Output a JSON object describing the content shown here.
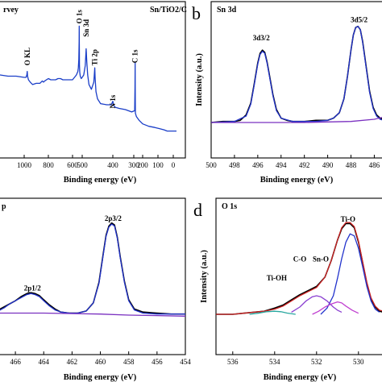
{
  "chart_data": [
    {
      "type": "line",
      "panel_label": "",
      "title": "Sn/TiO2/C",
      "title_partial": "rvey",
      "xlabel": "Binding energy (eV)",
      "ylabel": "",
      "x_ticks": [
        "1000",
        "800",
        "600",
        "500",
        "400",
        "300",
        "200",
        "100",
        "0"
      ],
      "x_tick_values": [
        1000,
        800,
        600,
        500,
        400,
        300,
        200,
        100,
        0
      ],
      "x_axis": "0.5 px per eV, 0-100 eV and 500-1000 eV; 400-200 eV compressed",
      "xlim": [
        1090,
        -20
      ],
      "ylim": [
        0,
        100
      ],
      "annotations": [
        {
          "text": "O KL",
          "x": 975,
          "y": 60
        },
        {
          "text": "O 1s",
          "x": 531,
          "y": 95
        },
        {
          "text": "Sn 3d",
          "x": 487,
          "y": 84
        },
        {
          "text": "Ti 2p",
          "x": 459,
          "y": 60
        },
        {
          "text": "N 1s",
          "x": 400,
          "y": 24
        },
        {
          "text": "C 1s",
          "x": 285,
          "y": 62
        }
      ],
      "series": [
        {
          "color": "#1a3ec8",
          "x": [
            1090,
            1080,
            1060,
            1040,
            1020,
            1000,
            985,
            978,
            975,
            972,
            965,
            950,
            930,
            900,
            870,
            850,
            840,
            830,
            800,
            780,
            760,
            740,
            720,
            700,
            680,
            660,
            640,
            620,
            600,
            590,
            580,
            570,
            560,
            550,
            545,
            540,
            535,
            532,
            531,
            530,
            528,
            525,
            520,
            510,
            500,
            495,
            490,
            487,
            485,
            482,
            478,
            470,
            462,
            459,
            458,
            455,
            450,
            440,
            420,
            405,
            400,
            397,
            390,
            370,
            340,
            310,
            290,
            286,
            285,
            284,
            282,
            270,
            240,
            200,
            160,
            120,
            90,
            60,
            40,
            20,
            0,
            -10,
            -20
          ],
          "y": [
            54,
            52,
            52,
            51,
            51,
            50,
            50,
            52,
            55,
            51,
            48,
            46,
            44,
            45,
            45,
            47,
            46,
            47,
            49,
            48,
            48,
            48,
            49,
            49,
            48,
            48,
            48,
            48,
            48,
            49,
            50,
            51,
            52,
            54,
            55,
            58,
            65,
            80,
            93,
            82,
            60,
            54,
            51,
            49,
            50,
            52,
            60,
            74,
            63,
            52,
            44,
            40,
            46,
            58,
            50,
            38,
            32,
            28,
            27,
            27,
            30,
            27,
            25,
            24,
            23,
            21,
            22,
            42,
            62,
            42,
            20,
            17,
            14,
            11,
            9,
            8,
            7,
            6,
            5,
            5,
            5,
            5,
            5
          ]
        }
      ]
    },
    {
      "type": "line",
      "panel_label": "b",
      "title": "Sn 3d",
      "xlabel": "Binding energy (eV)",
      "ylabel": "Intensity (a.u.)",
      "x_ticks": [
        "500",
        "498",
        "496",
        "494",
        "492",
        "490",
        "488",
        "486"
      ],
      "xlim": [
        500,
        485.2
      ],
      "ylim": [
        0,
        100
      ],
      "annotations": [
        {
          "text": "3d3/2",
          "x": 495.7,
          "y": 76
        },
        {
          "text": "3d5/2",
          "x": 487.3,
          "y": 93
        }
      ],
      "series": [
        {
          "color": "#000000",
          "x": [
            500,
            499,
            498,
            497.5,
            497,
            496.6,
            496.3,
            496,
            495.8,
            495.6,
            495.4,
            495.2,
            495,
            494.7,
            494.4,
            494,
            493.5,
            493,
            492,
            491,
            490,
            489.5,
            489,
            488.6,
            488.3,
            488,
            487.8,
            487.6,
            487.4,
            487.2,
            487,
            486.7,
            486.4,
            486.1,
            485.8,
            485.5,
            485.2
          ],
          "y": [
            0,
            1,
            1,
            2,
            7,
            18,
            36,
            55,
            64,
            67,
            65,
            56,
            44,
            26,
            12,
            4,
            2,
            1,
            1,
            2,
            2,
            4,
            9,
            22,
            43,
            67,
            81,
            88,
            89,
            86,
            75,
            52,
            29,
            14,
            7,
            4,
            3
          ]
        },
        {
          "color": "#2233cc",
          "x": [
            500,
            498,
            497,
            496.6,
            496.3,
            496,
            495.8,
            495.6,
            495.4,
            495.2,
            495,
            494.7,
            494.4,
            494,
            493,
            491,
            490,
            489.5,
            489,
            488.6,
            488.3,
            488,
            487.8,
            487.6,
            487.4,
            487.2,
            487,
            486.7,
            486.4,
            486.1,
            485.8,
            485.5,
            485.2
          ],
          "y": [
            0,
            1,
            6,
            17,
            35,
            54,
            63,
            66,
            64,
            55,
            43,
            25,
            11,
            4,
            1,
            1,
            2,
            4,
            9,
            22,
            43,
            67,
            81,
            88,
            89,
            86,
            74,
            51,
            28,
            13,
            6,
            3,
            2
          ]
        },
        {
          "color": "#7a30c0",
          "x": [
            500,
            498,
            496,
            494,
            492,
            490,
            488,
            486,
            485.2
          ],
          "y": [
            0,
            0,
            0,
            0,
            0,
            0.5,
            1,
            3,
            5
          ]
        }
      ]
    },
    {
      "type": "line",
      "panel_label": "",
      "title": "Ti 2p",
      "title_partial": "p",
      "xlabel": "Binding energy (eV)",
      "ylabel": "",
      "x_ticks": [
        "466",
        "464",
        "462",
        "460",
        "458",
        "456",
        "454"
      ],
      "xlim": [
        467.2,
        454
      ],
      "ylim": [
        0,
        100
      ],
      "annotations": [
        {
          "text": "2p1/2",
          "x": 464.8,
          "y": 24
        },
        {
          "text": "2p3/2",
          "x": 459.1,
          "y": 92
        }
      ],
      "series": [
        {
          "color": "#000000",
          "x": [
            467.2,
            466.8,
            466.4,
            466,
            465.6,
            465.2,
            464.9,
            464.6,
            464.3,
            464,
            463.6,
            463.2,
            462.8,
            462.2,
            461.6,
            461,
            460.5,
            460.1,
            459.8,
            459.6,
            459.4,
            459.2,
            459,
            458.8,
            458.6,
            458.3,
            458,
            457.6,
            457,
            456,
            455,
            454
          ],
          "y": [
            5,
            8,
            11,
            14,
            18,
            21,
            22,
            21,
            19,
            15,
            10,
            6,
            3,
            2,
            2,
            4,
            12,
            32,
            60,
            78,
            87,
            90,
            88,
            76,
            57,
            33,
            15,
            6,
            3,
            2,
            1,
            1
          ]
        },
        {
          "color": "#2233cc",
          "x": [
            467.2,
            466.8,
            466.4,
            466,
            465.6,
            465.2,
            464.9,
            464.6,
            464.3,
            464,
            463.6,
            463.2,
            462.8,
            462.2,
            461.6,
            461,
            460.5,
            460.1,
            459.8,
            459.6,
            459.4,
            459.2,
            459,
            458.8,
            458.6,
            458.3,
            458,
            457.6,
            457,
            456,
            455,
            454
          ],
          "y": [
            4,
            7,
            11,
            14,
            17,
            20,
            21,
            20,
            18,
            14,
            9,
            5,
            3,
            2,
            2,
            4,
            12,
            31,
            59,
            77,
            86,
            89,
            87,
            75,
            56,
            32,
            14,
            5,
            2,
            1,
            1,
            1
          ]
        },
        {
          "color": "#7a30c0",
          "x": [
            467.2,
            464,
            462,
            460,
            458,
            456,
            454
          ],
          "y": [
            2,
            2,
            1.5,
            1,
            0,
            -0.5,
            -1
          ]
        }
      ]
    },
    {
      "type": "line",
      "panel_label": "d",
      "title": "O 1s",
      "xlabel": "Binding energy (eV)",
      "ylabel": "Intensity (a.u.)",
      "x_ticks": [
        "536",
        "534",
        "532",
        "530"
      ],
      "xlim": [
        536.8,
        528.8
      ],
      "ylim": [
        0,
        100
      ],
      "annotations": [
        {
          "text": "Ti-OH",
          "x": 533.9,
          "y": 33
        },
        {
          "text": "C-O",
          "x": 532.8,
          "y": 51
        },
        {
          "text": "Sn-O",
          "x": 531.8,
          "y": 51
        },
        {
          "text": "Ti-O",
          "x": 530.5,
          "y": 90
        }
      ],
      "series": [
        {
          "color": "#000000",
          "x": [
            536.8,
            536,
            535.5,
            535,
            534.5,
            534,
            533.6,
            533.2,
            532.8,
            532.4,
            532,
            531.6,
            531.3,
            531,
            530.8,
            530.6,
            530.4,
            530.2,
            530,
            529.8,
            529.6,
            529.4,
            529.2,
            529,
            528.8
          ],
          "y": [
            0,
            0,
            1,
            2,
            3,
            6,
            9,
            14,
            19,
            23,
            27,
            36,
            52,
            72,
            83,
            88,
            88,
            84,
            70,
            50,
            30,
            15,
            7,
            3,
            2
          ]
        },
        {
          "color": "#cc2222",
          "x": [
            536.8,
            536,
            535.5,
            535,
            534.5,
            534,
            533.6,
            533.2,
            532.8,
            532.4,
            532,
            531.6,
            531.3,
            531,
            530.8,
            530.6,
            530.4,
            530.2,
            530,
            529.8,
            529.6,
            529.4,
            529.2,
            529,
            528.8
          ],
          "y": [
            0,
            0,
            1,
            2,
            3,
            5,
            8,
            13,
            18,
            22,
            26,
            36,
            52,
            72,
            84,
            89,
            89,
            85,
            71,
            51,
            31,
            16,
            8,
            4,
            3
          ]
        },
        {
          "color": "#2233cc",
          "x": [
            531.8,
            531.5,
            531.2,
            531,
            530.8,
            530.6,
            530.4,
            530.2,
            530,
            529.8,
            529.6,
            529.4,
            529.2,
            529
          ],
          "y": [
            0,
            6,
            18,
            35,
            54,
            70,
            78,
            76,
            64,
            46,
            27,
            13,
            5,
            2
          ]
        },
        {
          "color": "#8a3fd1",
          "x": [
            533.2,
            532.8,
            532.5,
            532.2,
            532,
            531.8,
            531.5,
            531.2,
            531,
            530.8
          ],
          "y": [
            2,
            7,
            13,
            17,
            18,
            17,
            13,
            7,
            4,
            2
          ]
        },
        {
          "color": "#c040d0",
          "x": [
            532.2,
            531.9,
            531.6,
            531.3,
            531,
            530.8,
            530.6,
            530.3,
            530
          ],
          "y": [
            0,
            3,
            7,
            10,
            12,
            11,
            8,
            4,
            1
          ]
        },
        {
          "color": "#2aa8a0",
          "x": [
            535.2,
            534.8,
            534.4,
            534,
            533.7,
            533.4,
            533
          ],
          "y": [
            0,
            1,
            2.5,
            3,
            2.5,
            1.2,
            0
          ]
        }
      ]
    }
  ]
}
